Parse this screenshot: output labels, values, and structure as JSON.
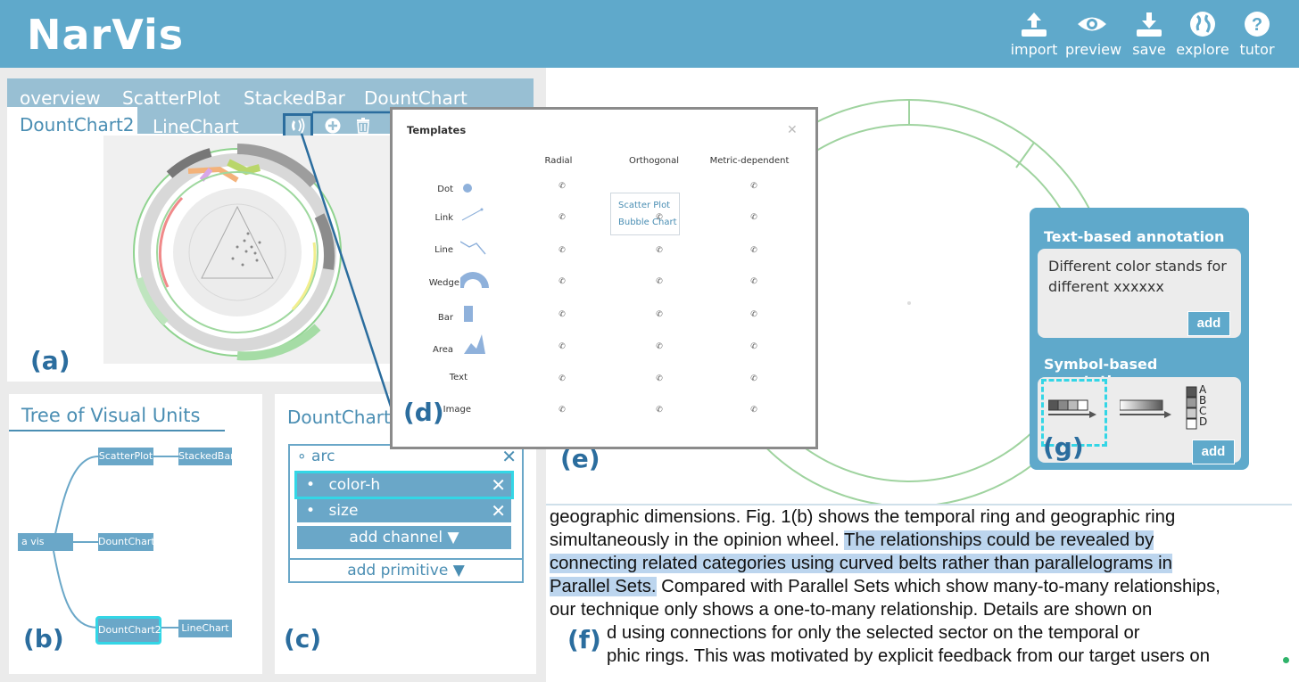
{
  "app": {
    "title": "NarVis"
  },
  "header_buttons": [
    {
      "label": "import",
      "icon": "upload-icon"
    },
    {
      "label": "preview",
      "icon": "eye-icon"
    },
    {
      "label": "save",
      "icon": "download-icon"
    },
    {
      "label": "explore",
      "icon": "globe-icon"
    },
    {
      "label": "tutor",
      "icon": "question-icon"
    }
  ],
  "panel_a": {
    "tabs": [
      "overview",
      "ScatterPlot",
      "StackedBar",
      "DountChart",
      "DountChart2",
      "LineChart"
    ],
    "active_tab": "DountChart2",
    "label": "(a)"
  },
  "panel_b": {
    "title": "Tree of Visual Units",
    "nodes": {
      "root": "a vis",
      "scatter": "ScatterPlot",
      "stacked": "StackedBar",
      "dount": "DountChart",
      "dount2": "DountChart2",
      "line": "LineChart"
    },
    "label": "(b)"
  },
  "panel_c": {
    "title": "DountChart",
    "primitive": "arc",
    "channels": [
      "color-h",
      "size"
    ],
    "add_channel": "add channel",
    "add_primitive": "add primitive",
    "label": "(c)"
  },
  "templates": {
    "title": "Templates",
    "columns": [
      "Radial",
      "Orthogonal",
      "Metric-dependent"
    ],
    "rows": [
      "Dot",
      "Link",
      "Line",
      "Wedge",
      "Bar",
      "Area",
      "Text",
      "Image"
    ],
    "popup": [
      "Scatter Plot",
      "Bubble Chart"
    ],
    "label": "(d)"
  },
  "panel_e": {
    "label": "(e)"
  },
  "annotation": {
    "text_title": "Text-based annotation",
    "text_value": "Different color stands for different xxxxxx",
    "add": "add",
    "symbol_title": "Symbol-based annotation",
    "legend": [
      "A",
      "B",
      "C",
      "D"
    ],
    "label": "(g)"
  },
  "panel_f": {
    "line0": "geographic dimensions. Fig. 1(b) shows the temporal ring and geographic ring",
    "line1a": "simultaneously in the opinion wheel. ",
    "line1b": "The relationships could be revealed by",
    "line2": "connecting related categories using curved belts rather than parallelograms in",
    "line3a": "Parallel Sets.",
    "line3b": " Compared with Parallel Sets which show many-to-many relationships,",
    "line4": "our technique only shows a one-to-many relationship. Details are shown on",
    "line5": "d using connections for only the selected sector on the temporal or",
    "line6": "phic rings. This was motivated by explicit feedback from our target users on",
    "label": "(f)"
  },
  "colors": {
    "header": "#5fa9cb",
    "accent": "#4a8eb3",
    "node": "#6aa7c8",
    "highlight": "#33d6e6"
  }
}
